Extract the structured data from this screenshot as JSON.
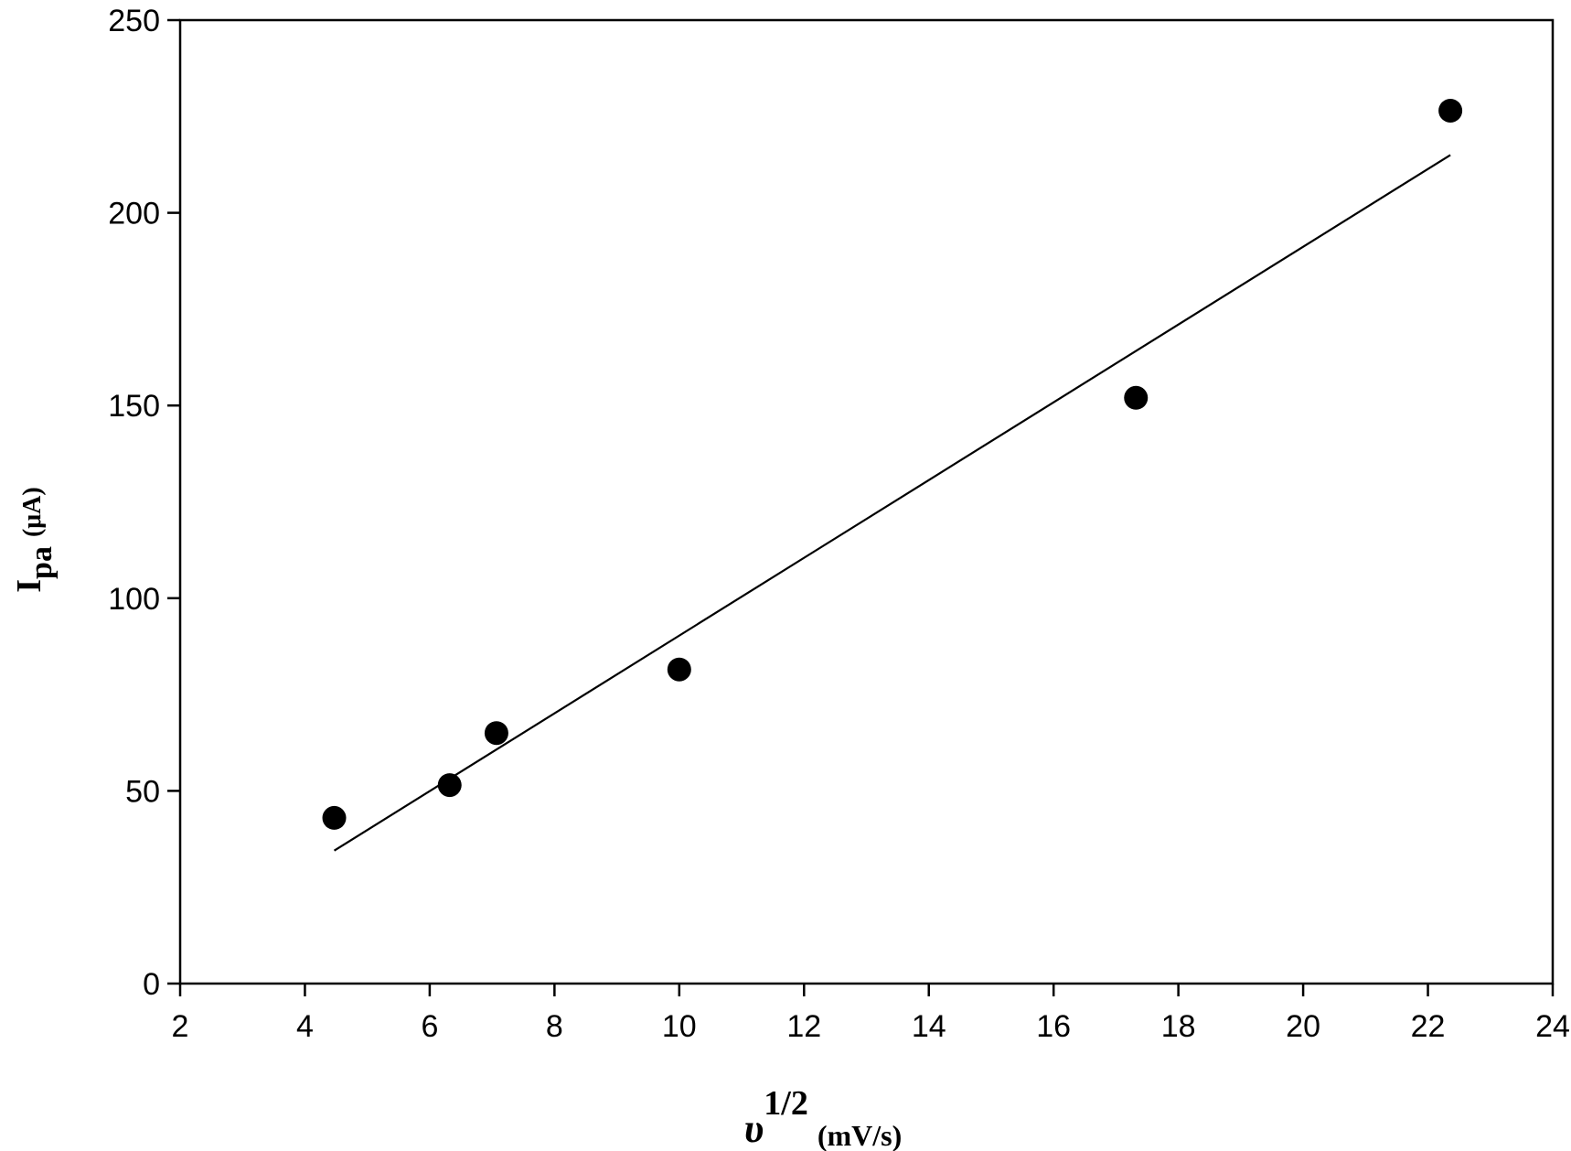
{
  "chart_data": {
    "type": "scatter",
    "title": "",
    "xlabel": {
      "main": "υ",
      "sup": "1/2",
      "unit": "(mV/s)"
    },
    "ylabel": {
      "main": "I",
      "sub": "pa",
      "unit": "(μA)"
    },
    "xlim": [
      2,
      24
    ],
    "ylim": [
      0,
      250
    ],
    "xticks": [
      2,
      4,
      6,
      8,
      10,
      12,
      14,
      16,
      18,
      20,
      22,
      24
    ],
    "yticks": [
      0,
      50,
      100,
      150,
      200,
      250
    ],
    "grid": false,
    "legend": "none",
    "series": [
      {
        "points": [
          {
            "x": 4.47,
            "y": 43
          },
          {
            "x": 6.32,
            "y": 51.5
          },
          {
            "x": 7.07,
            "y": 65
          },
          {
            "x": 10.0,
            "y": 81.5
          },
          {
            "x": 17.32,
            "y": 152
          },
          {
            "x": 22.36,
            "y": 226.5
          }
        ],
        "color": "#000000",
        "marker": "circle"
      }
    ],
    "fit_line": {
      "x": [
        4.47,
        22.36
      ],
      "y": [
        34.5,
        215
      ],
      "color": "#000000"
    }
  }
}
